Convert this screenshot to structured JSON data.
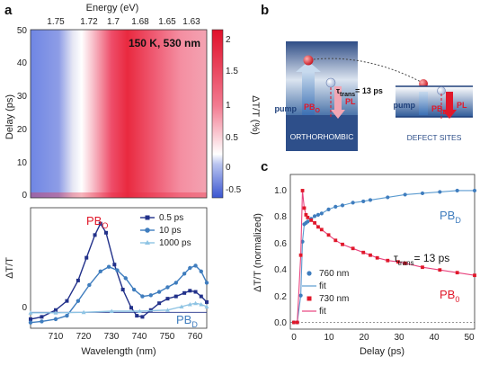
{
  "panels": {
    "a": "a",
    "b": "b",
    "c": "c"
  },
  "colors": {
    "blue_dark": "#22318a",
    "blue_mid": "#3f7dbe",
    "blue_light": "#8fc4e4",
    "red": "#e0182a",
    "pink": "#e8437e"
  },
  "panel_a": {
    "map": {
      "top_axis_label": "Energy (eV)",
      "top_ticks": [
        "1.75",
        "1.72",
        "1.7",
        "1.68",
        "1.65",
        "1.63"
      ],
      "ylabel": "Delay (ps)",
      "yticks": [
        "0",
        "10",
        "20",
        "30",
        "40",
        "50"
      ],
      "condition_label": "150 K, 530 nm",
      "colorbar_label": "ΔT/T (%)",
      "colorbar_ticks": [
        "-0.5",
        "0",
        "0.5",
        "1",
        "1.5",
        "2"
      ]
    },
    "spectra": {
      "ylabel": "ΔT/T",
      "ytick": "0",
      "xlabel": "Wavelength (nm)",
      "xticks": [
        "710",
        "720",
        "730",
        "740",
        "750",
        "760"
      ],
      "label_pbo": "PB",
      "label_pbo_sub": "O",
      "label_pbd": "PB",
      "label_pbd_sub": "D",
      "legend": [
        "0.5 ps",
        "10 ps",
        "1000 ps"
      ]
    }
  },
  "panel_b": {
    "pump_left": "pump",
    "pbo": "PB",
    "pbo_sub": "O",
    "pl_left": "PL",
    "tau": "τ",
    "tau_sub": "trans",
    "tau_value": "= 13 ps",
    "orthorhombic": "ORTHORHOMBIC",
    "pump_right": "pump",
    "pbd": "PB",
    "pbd_sub": "D",
    "pl_right": "PL",
    "defect_sites": "DEFECT SITES"
  },
  "panel_c": {
    "ylabel": "ΔT/T (normalized)",
    "xlabel": "Delay (ps)",
    "xticks": [
      "0",
      "10",
      "20",
      "30",
      "40",
      "50"
    ],
    "yticks": [
      "0.0",
      "0.2",
      "0.4",
      "0.6",
      "0.8",
      "1.0"
    ],
    "label_pbd": "PB",
    "label_pbd_sub": "D",
    "label_pbo": "PB",
    "label_pbo_sub": "0",
    "tau": "τ",
    "tau_sub": "trans",
    "tau_value": "= 13 ps",
    "legend": [
      "760 nm",
      "fit",
      "730 nm",
      "fit"
    ]
  },
  "chart_data": [
    {
      "type": "line",
      "xlabel": "Wavelength (nm)",
      "ylabel": "ΔT/T",
      "xlim": [
        701,
        764
      ],
      "ylim": [
        -0.7,
        4.6
      ],
      "series": [
        {
          "name": "0.5 ps",
          "x": [
            701,
            705,
            710,
            714,
            718,
            721,
            724,
            726,
            728,
            731,
            734,
            737,
            739,
            741,
            744,
            747,
            750,
            753,
            756,
            758,
            760,
            762,
            764
          ],
          "y": [
            -0.3,
            -0.2,
            0.1,
            0.5,
            1.4,
            2.4,
            3.4,
            3.9,
            3.5,
            2.1,
            1.0,
            0.2,
            -0.15,
            -0.2,
            0.1,
            0.4,
            0.6,
            0.7,
            0.85,
            0.95,
            0.9,
            0.7,
            0.45
          ]
        },
        {
          "name": "10 ps",
          "x": [
            701,
            705,
            710,
            714,
            718,
            722,
            726,
            729,
            732,
            735,
            738,
            741,
            744,
            747,
            750,
            753,
            756,
            758,
            760,
            762,
            764
          ],
          "y": [
            -0.45,
            -0.4,
            -0.3,
            -0.15,
            0.5,
            1.2,
            1.8,
            2.0,
            1.85,
            1.5,
            1.0,
            0.7,
            0.75,
            0.9,
            1.1,
            1.3,
            1.7,
            1.95,
            2.05,
            1.8,
            1.3
          ]
        },
        {
          "name": "1000 ps",
          "x": [
            701,
            710,
            720,
            730,
            740,
            750,
            755,
            758,
            760,
            762,
            764
          ],
          "y": [
            -0.02,
            -0.02,
            0.0,
            0.05,
            0.05,
            0.1,
            0.25,
            0.35,
            0.4,
            0.35,
            0.25
          ]
        }
      ]
    },
    {
      "type": "scatter",
      "xlabel": "Delay (ps)",
      "ylabel": "ΔT/T (normalized)",
      "xlim": [
        -3,
        50
      ],
      "ylim": [
        -0.05,
        1.1
      ],
      "series": [
        {
          "name": "760 nm",
          "x": [
            -2,
            -1,
            0,
            0.5,
            1,
            1.5,
            2,
            3,
            4,
            5,
            6,
            8,
            10,
            12,
            15,
            18,
            20,
            25,
            30,
            35,
            40,
            45,
            50
          ],
          "y": [
            0,
            0,
            0.2,
            0.6,
            0.73,
            0.74,
            0.75,
            0.77,
            0.79,
            0.8,
            0.81,
            0.84,
            0.86,
            0.87,
            0.89,
            0.9,
            0.91,
            0.93,
            0.95,
            0.96,
            0.97,
            0.98,
            0.98
          ]
        },
        {
          "name": "730 nm",
          "x": [
            -2,
            -1,
            0,
            0.5,
            1,
            1.5,
            2,
            3,
            4,
            5,
            6,
            8,
            10,
            12,
            15,
            18,
            20,
            22,
            25,
            28,
            30,
            35,
            40,
            45,
            50
          ],
          "y": [
            0,
            0,
            0.5,
            0.98,
            0.85,
            0.8,
            0.78,
            0.76,
            0.74,
            0.71,
            0.69,
            0.65,
            0.61,
            0.58,
            0.55,
            0.52,
            0.5,
            0.48,
            0.46,
            0.45,
            0.44,
            0.41,
            0.39,
            0.37,
            0.35
          ]
        }
      ]
    }
  ]
}
